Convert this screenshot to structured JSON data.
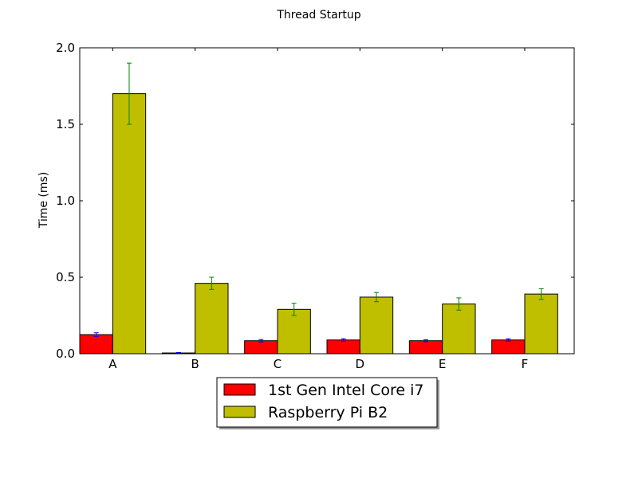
{
  "chart_data": {
    "type": "bar",
    "title": "Thread Startup",
    "xlabel": "",
    "ylabel": "Time (ms)",
    "ylim": [
      0,
      2.0
    ],
    "yticks": [
      0.0,
      0.5,
      1.0,
      1.5,
      2.0
    ],
    "ytick_labels": [
      "0.0",
      "0.5",
      "1.0",
      "1.5",
      "2.0"
    ],
    "categories": [
      "A",
      "B",
      "C",
      "D",
      "E",
      "F"
    ],
    "grid": false,
    "legend_position": "bottom-center",
    "series": [
      {
        "name": "1st Gen Intel Core i7",
        "color": "#ff0000",
        "error_color": "#0000ff",
        "values": [
          0.125,
          0.005,
          0.085,
          0.09,
          0.085,
          0.09
        ],
        "errors": [
          0.012,
          0.003,
          0.008,
          0.008,
          0.007,
          0.008
        ]
      },
      {
        "name": "Raspberry Pi B2",
        "color": "#bfbf00",
        "error_color": "#008000",
        "values": [
          1.7,
          0.46,
          0.29,
          0.37,
          0.325,
          0.39
        ],
        "errors": [
          0.2,
          0.04,
          0.04,
          0.03,
          0.04,
          0.035
        ]
      }
    ]
  }
}
